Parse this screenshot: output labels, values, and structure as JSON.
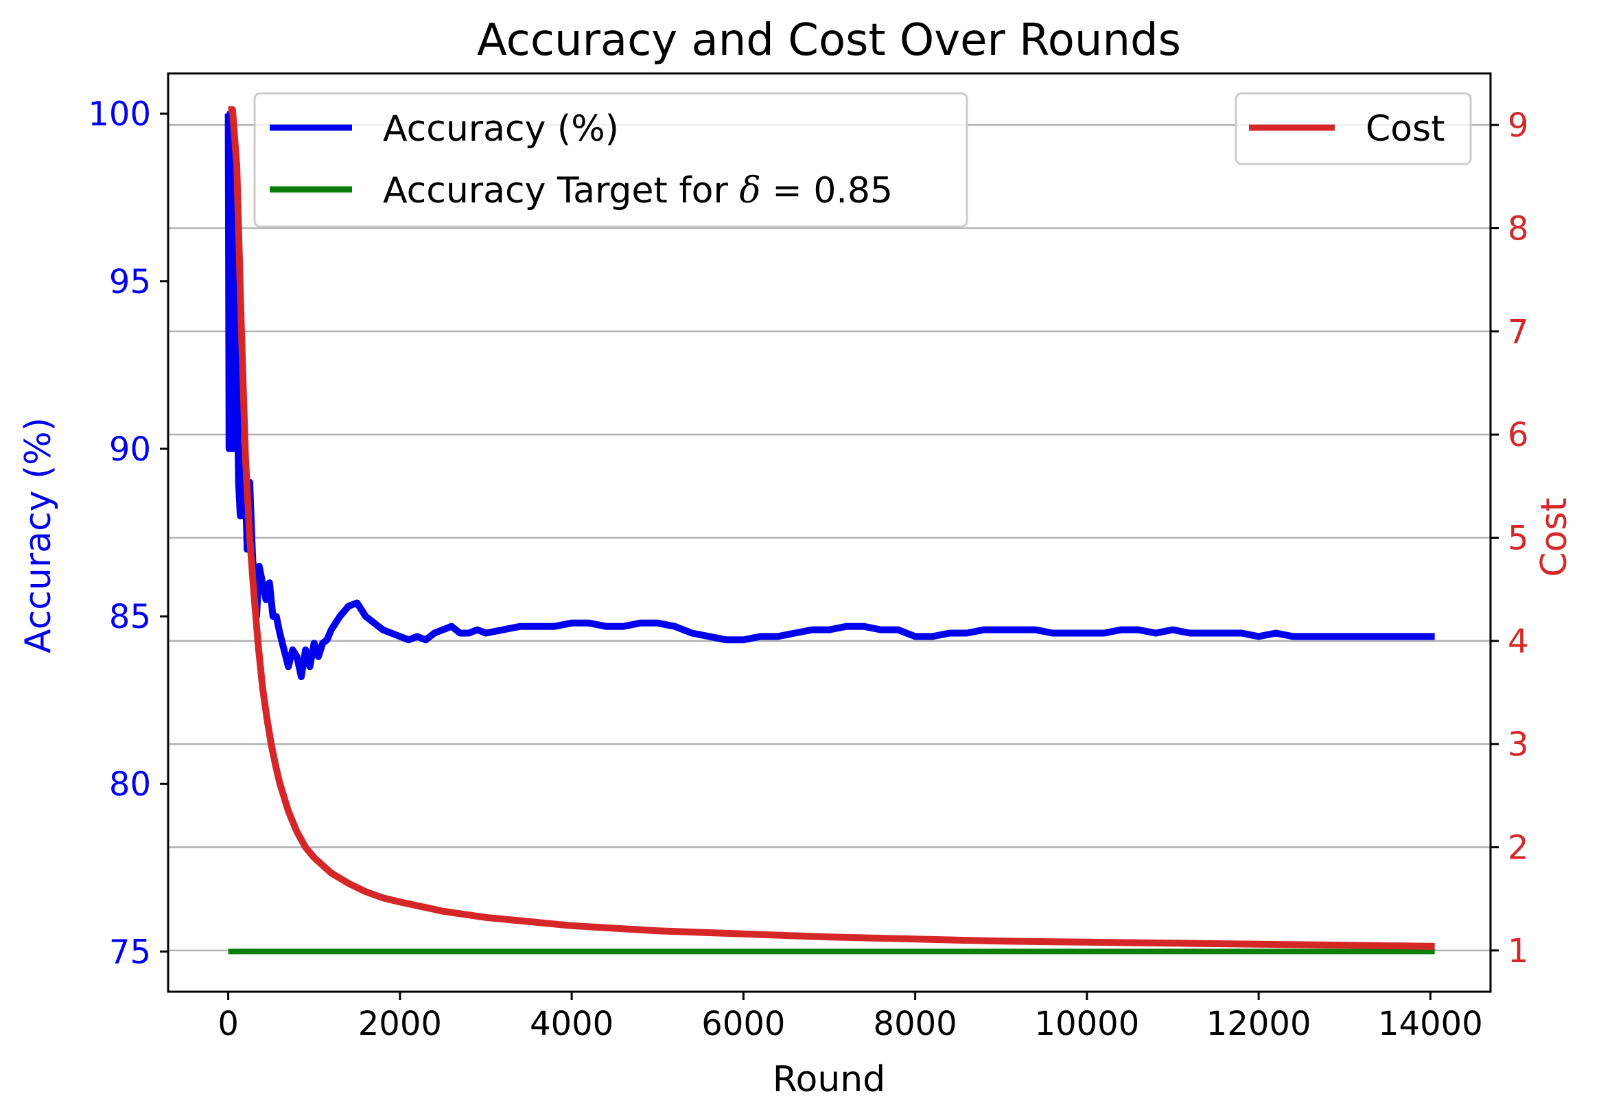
{
  "chart_data": {
    "type": "line",
    "title": "Accuracy and Cost Over Rounds",
    "xlabel": "Round",
    "ylabel_left": "Accuracy (%)",
    "ylabel_right": "Cost",
    "xlim": [
      -700,
      14700
    ],
    "ylim_left": [
      73.8,
      101.2
    ],
    "ylim_right": [
      0.6,
      9.5
    ],
    "x_ticks": [
      0,
      2000,
      4000,
      6000,
      8000,
      10000,
      12000,
      14000
    ],
    "y_left_ticks": [
      75,
      80,
      85,
      90,
      95,
      100
    ],
    "y_right_ticks": [
      1,
      2,
      3,
      4,
      5,
      6,
      7,
      8,
      9
    ],
    "grid": "horizontal lines at right-axis ticks",
    "colors": {
      "accuracy": "#0000ee",
      "target": "#0b7d0b",
      "cost": "#d62728",
      "left_axis": "#0000ee",
      "right_axis": "#d62728",
      "grid": "#b0b0b0"
    },
    "series": [
      {
        "name": "Accuracy (%)",
        "axis": "left",
        "x": [
          0,
          10,
          20,
          30,
          40,
          50,
          60,
          70,
          80,
          90,
          100,
          120,
          140,
          160,
          180,
          200,
          220,
          250,
          280,
          300,
          330,
          360,
          400,
          440,
          480,
          520,
          560,
          600,
          650,
          700,
          750,
          800,
          850,
          900,
          950,
          1000,
          1050,
          1100,
          1150,
          1200,
          1300,
          1400,
          1500,
          1600,
          1700,
          1800,
          1900,
          2000,
          2100,
          2200,
          2300,
          2400,
          2500,
          2600,
          2700,
          2800,
          2900,
          3000,
          3200,
          3400,
          3600,
          3800,
          4000,
          4200,
          4400,
          4600,
          4800,
          5000,
          5200,
          5400,
          5600,
          5800,
          6000,
          6200,
          6400,
          6600,
          6800,
          7000,
          7200,
          7400,
          7600,
          7800,
          8000,
          8200,
          8400,
          8600,
          8800,
          9000,
          9200,
          9400,
          9600,
          9800,
          10000,
          10200,
          10400,
          10600,
          10800,
          11000,
          11200,
          11400,
          11600,
          11800,
          12000,
          12200,
          12400,
          12600,
          12800,
          13000,
          13200,
          13400,
          13600,
          13800,
          14050
        ],
        "values": [
          100,
          90,
          100,
          91,
          99,
          90,
          97,
          92,
          95,
          90,
          93,
          89,
          88,
          90,
          88,
          89,
          87,
          89,
          87,
          86,
          85,
          86.5,
          86,
          85.5,
          86,
          85,
          85,
          84.5,
          84,
          83.5,
          84,
          83.8,
          83.2,
          84,
          83.5,
          84.2,
          83.8,
          84.2,
          84.3,
          84.6,
          85,
          85.3,
          85.4,
          85,
          84.8,
          84.6,
          84.5,
          84.4,
          84.3,
          84.4,
          84.3,
          84.5,
          84.6,
          84.7,
          84.5,
          84.5,
          84.6,
          84.5,
          84.6,
          84.7,
          84.7,
          84.7,
          84.8,
          84.8,
          84.7,
          84.7,
          84.8,
          84.8,
          84.7,
          84.5,
          84.4,
          84.3,
          84.3,
          84.4,
          84.4,
          84.5,
          84.6,
          84.6,
          84.7,
          84.7,
          84.6,
          84.6,
          84.4,
          84.4,
          84.5,
          84.5,
          84.6,
          84.6,
          84.6,
          84.6,
          84.5,
          84.5,
          84.5,
          84.5,
          84.6,
          84.6,
          84.5,
          84.6,
          84.5,
          84.5,
          84.5,
          84.5,
          84.4,
          84.5,
          84.4,
          84.4,
          84.4,
          84.4,
          84.4,
          84.4,
          84.4,
          84.4,
          84.4
        ]
      },
      {
        "name": "Accuracy Target for δ = 0.85",
        "axis": "left",
        "x": [
          0,
          14050
        ],
        "values": [
          75,
          75
        ]
      },
      {
        "name": "Cost",
        "axis": "right",
        "x": [
          0,
          50,
          100,
          150,
          200,
          250,
          300,
          350,
          400,
          450,
          500,
          550,
          600,
          700,
          800,
          900,
          1000,
          1200,
          1400,
          1600,
          1800,
          2000,
          2500,
          3000,
          3500,
          4000,
          5000,
          6000,
          7000,
          8000,
          9000,
          10000,
          11000,
          12000,
          13000,
          14050
        ],
        "values": [
          9.15,
          9.15,
          8.6,
          7.1,
          5.8,
          5.0,
          4.45,
          3.95,
          3.55,
          3.25,
          3.0,
          2.8,
          2.62,
          2.35,
          2.15,
          2.0,
          1.9,
          1.75,
          1.65,
          1.57,
          1.51,
          1.47,
          1.38,
          1.32,
          1.28,
          1.24,
          1.19,
          1.16,
          1.13,
          1.11,
          1.09,
          1.08,
          1.07,
          1.06,
          1.05,
          1.04
        ]
      }
    ],
    "legend_left": {
      "placement": "top-left",
      "items": [
        {
          "label": "Accuracy (%)",
          "series": 0
        },
        {
          "label_prefix": "Accuracy Target for ",
          "label_symbol": "δ",
          "label_suffix": " = 0.85",
          "series": 1
        }
      ]
    },
    "legend_right": {
      "placement": "top-right",
      "items": [
        {
          "label": "Cost",
          "series": 2
        }
      ]
    }
  }
}
